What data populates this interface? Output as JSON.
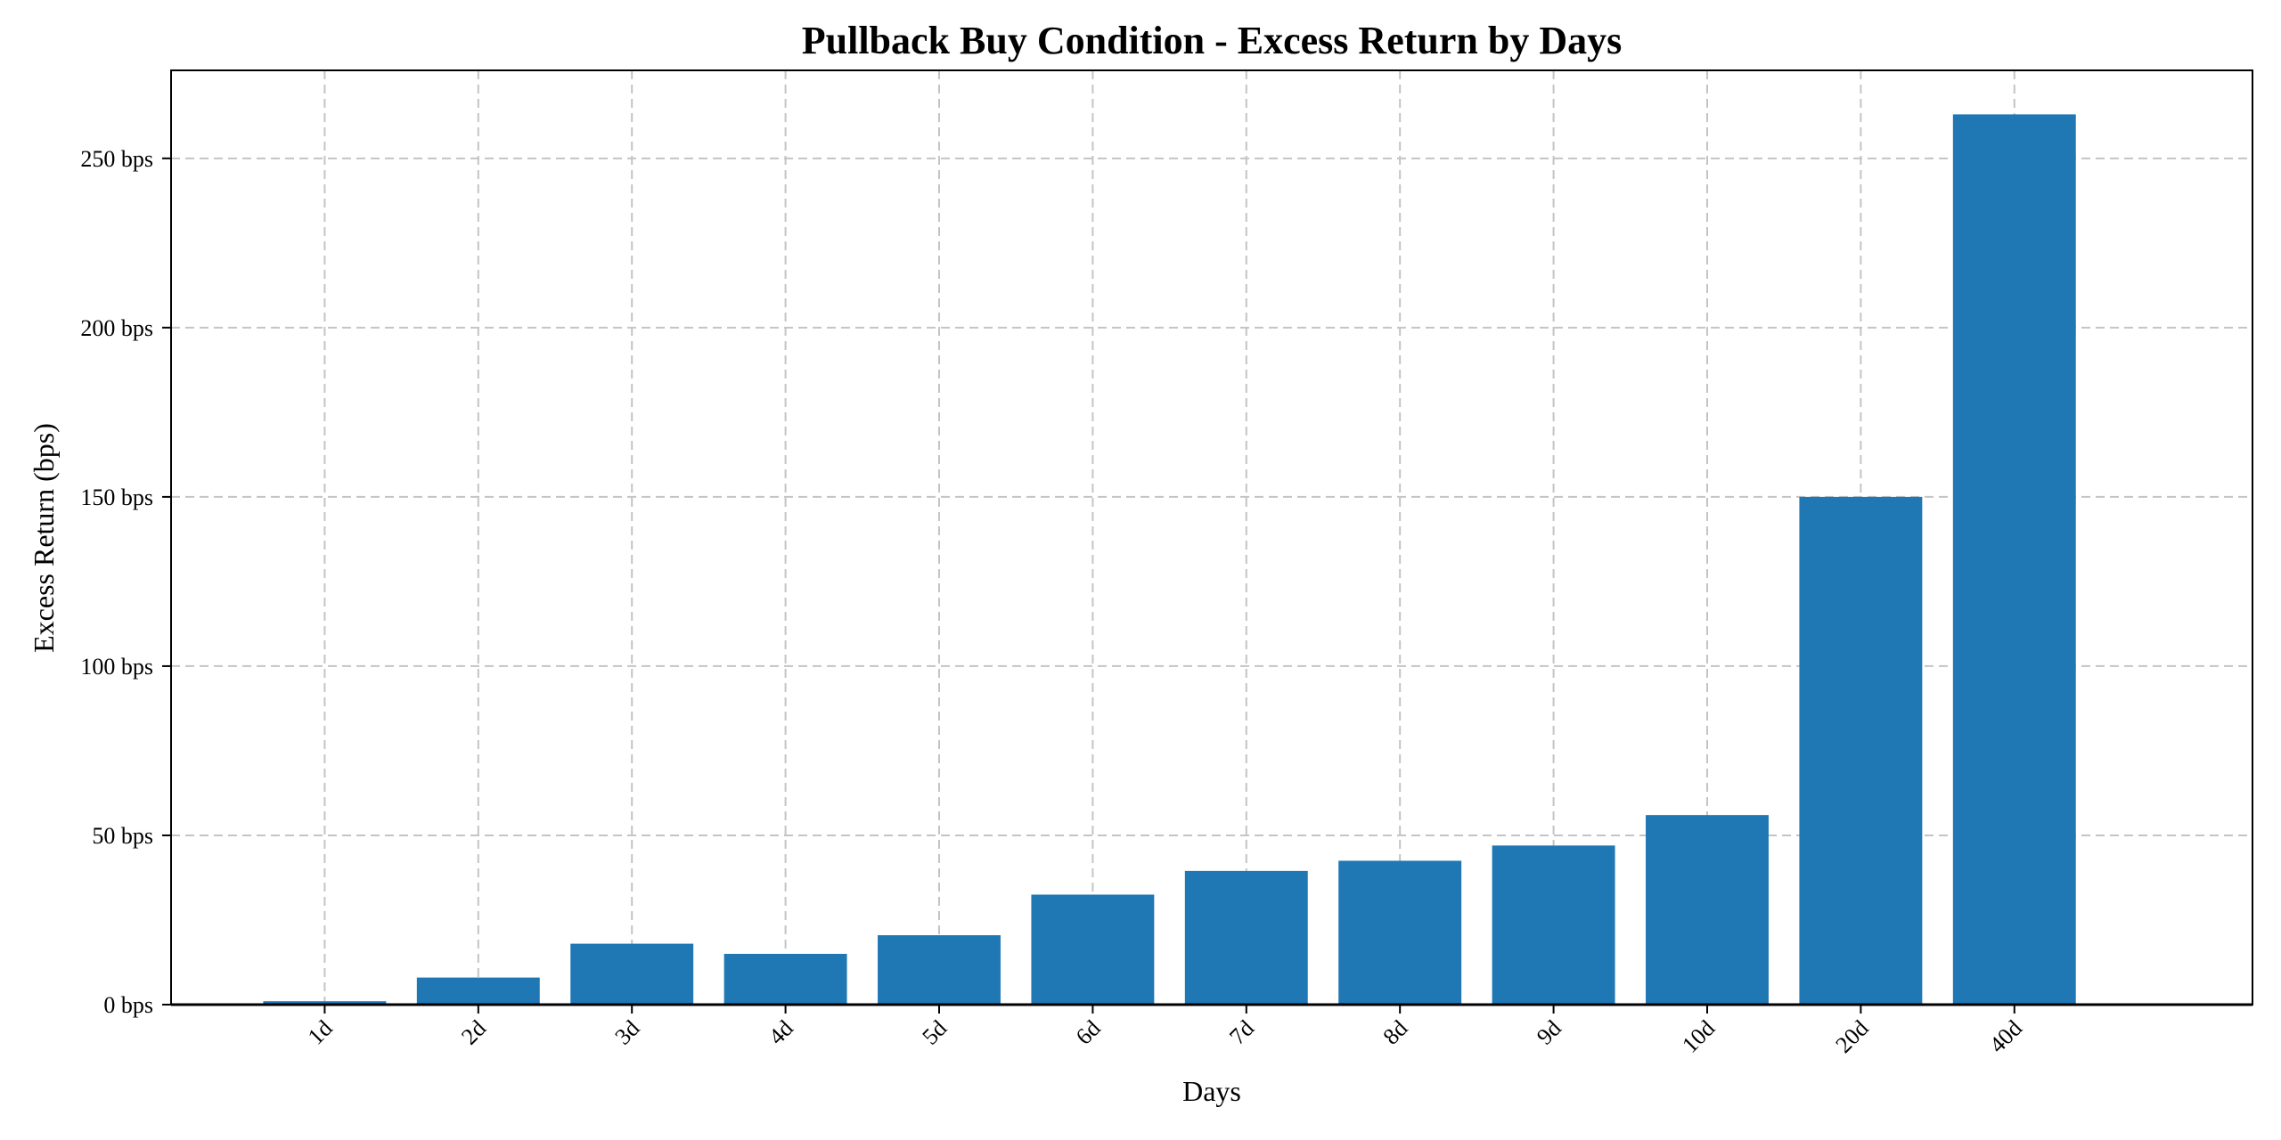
{
  "chart_data": {
    "type": "bar",
    "title": "Pullback Buy Condition - Excess Return by Days",
    "xlabel": "Days",
    "ylabel": "Excess Return (bps)",
    "categories": [
      "1d",
      "2d",
      "3d",
      "4d",
      "5d",
      "6d",
      "7d",
      "8d",
      "9d",
      "10d",
      "20d",
      "40d"
    ],
    "values": [
      1,
      8,
      18,
      15,
      20.5,
      32.5,
      39.5,
      42.5,
      47,
      56,
      150,
      263
    ],
    "ylim": [
      0,
      276
    ],
    "yticks": [
      0,
      50,
      100,
      150,
      200,
      250
    ],
    "ytick_labels": [
      "0 bps",
      "50 bps",
      "100 bps",
      "150 bps",
      "200 bps",
      "250 bps"
    ],
    "bar_color": "#1f77b4",
    "grid": true,
    "legend": false
  }
}
